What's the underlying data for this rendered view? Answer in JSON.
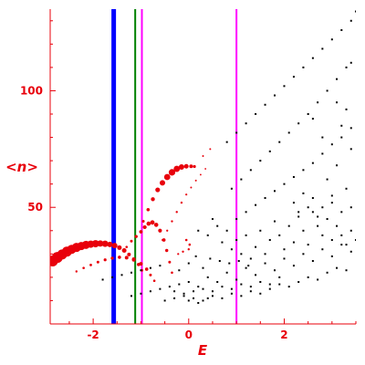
{
  "chart_data": {
    "type": "scatter",
    "title": "",
    "xlabel": "E",
    "ylabel": "<n>",
    "xlim": [
      -2.9,
      3.5
    ],
    "ylim": [
      0,
      135
    ],
    "xticks": [
      {
        "value": -2,
        "label": "-2"
      },
      {
        "value": 0,
        "label": "0"
      },
      {
        "value": 2,
        "label": "2"
      }
    ],
    "yticks": [
      {
        "value": 50,
        "label": "50"
      },
      {
        "value": 100,
        "label": "100"
      }
    ],
    "axis_color": "#e8000b",
    "grid": false,
    "series": [
      {
        "color": "#e8000b",
        "size_varies": true,
        "points": [
          {
            "x": -2.85,
            "y": 27,
            "s": 6
          },
          {
            "x": -2.75,
            "y": 28.5,
            "s": 6
          },
          {
            "x": -2.65,
            "y": 29.8,
            "s": 5.5
          },
          {
            "x": -2.55,
            "y": 31,
            "s": 5.5
          },
          {
            "x": -2.45,
            "y": 32,
            "s": 5
          },
          {
            "x": -2.35,
            "y": 32.8,
            "s": 5
          },
          {
            "x": -2.25,
            "y": 33.4,
            "s": 4.5
          },
          {
            "x": -2.15,
            "y": 33.9,
            "s": 4.5
          },
          {
            "x": -2.05,
            "y": 34.2,
            "s": 4
          },
          {
            "x": -1.95,
            "y": 34.4,
            "s": 4
          },
          {
            "x": -1.85,
            "y": 34.5,
            "s": 3.5
          },
          {
            "x": -1.75,
            "y": 34.4,
            "s": 3.5
          },
          {
            "x": -1.65,
            "y": 34.1,
            "s": 3
          },
          {
            "x": -1.55,
            "y": 33.6,
            "s": 3
          },
          {
            "x": -1.45,
            "y": 32.7,
            "s": 2.5
          },
          {
            "x": -1.35,
            "y": 31.5,
            "s": 2.5
          },
          {
            "x": -1.25,
            "y": 29.8,
            "s": 2
          },
          {
            "x": -1.15,
            "y": 27.8,
            "s": 2
          },
          {
            "x": -1.05,
            "y": 25.5,
            "s": 1.8
          },
          {
            "x": -0.98,
            "y": 23,
            "s": 1.5
          },
          {
            "x": -2.35,
            "y": 22.5,
            "s": 1.2
          },
          {
            "x": -2.2,
            "y": 24,
            "s": 1.3
          },
          {
            "x": -2.05,
            "y": 25.3,
            "s": 1.4
          },
          {
            "x": -1.9,
            "y": 26.5,
            "s": 1.5
          },
          {
            "x": -1.75,
            "y": 27.5,
            "s": 1.6
          },
          {
            "x": -1.6,
            "y": 28.2,
            "s": 1.7
          },
          {
            "x": -1.45,
            "y": 28.6,
            "s": 1.8
          },
          {
            "x": -1.3,
            "y": 28.4,
            "s": 2
          },
          {
            "x": -1.15,
            "y": 27.5,
            "s": 2
          },
          {
            "x": -1.0,
            "y": 25.8,
            "s": 2
          },
          {
            "x": -0.88,
            "y": 23.5,
            "s": 1.8
          },
          {
            "x": -0.8,
            "y": 21,
            "s": 1.5
          },
          {
            "x": -0.72,
            "y": 18.5,
            "s": 1.3
          },
          {
            "x": -1.3,
            "y": 33,
            "s": 1.3
          },
          {
            "x": -1.2,
            "y": 35.5,
            "s": 1.5
          },
          {
            "x": -1.1,
            "y": 37.5,
            "s": 1.7
          },
          {
            "x": -1.0,
            "y": 39.5,
            "s": 1.9
          },
          {
            "x": -0.92,
            "y": 41.5,
            "s": 2.1
          },
          {
            "x": -0.84,
            "y": 43,
            "s": 2.3
          },
          {
            "x": -0.76,
            "y": 43.5,
            "s": 2.4
          },
          {
            "x": -0.68,
            "y": 42.5,
            "s": 2.3
          },
          {
            "x": -0.6,
            "y": 40,
            "s": 2.1
          },
          {
            "x": -0.52,
            "y": 36,
            "s": 1.9
          },
          {
            "x": -0.46,
            "y": 31.5,
            "s": 1.7
          },
          {
            "x": -0.4,
            "y": 26.5,
            "s": 1.5
          },
          {
            "x": -0.35,
            "y": 22,
            "s": 1.3
          },
          {
            "x": -0.95,
            "y": 44,
            "s": 1.5
          },
          {
            "x": -0.85,
            "y": 49,
            "s": 1.8
          },
          {
            "x": -0.75,
            "y": 53.5,
            "s": 2.2
          },
          {
            "x": -0.65,
            "y": 57.5,
            "s": 2.6
          },
          {
            "x": -0.55,
            "y": 60.5,
            "s": 3
          },
          {
            "x": -0.45,
            "y": 63,
            "s": 3.4
          },
          {
            "x": -0.35,
            "y": 65,
            "s": 3.6
          },
          {
            "x": -0.25,
            "y": 66.5,
            "s": 3.4
          },
          {
            "x": -0.15,
            "y": 67.3,
            "s": 3
          },
          {
            "x": -0.05,
            "y": 67.6,
            "s": 2.5
          },
          {
            "x": 0.05,
            "y": 67.6,
            "s": 2
          },
          {
            "x": 0.12,
            "y": 67.5,
            "s": 1.6
          },
          {
            "x": -0.55,
            "y": 36,
            "s": 1
          },
          {
            "x": -0.45,
            "y": 40,
            "s": 1.1
          },
          {
            "x": -0.35,
            "y": 44,
            "s": 1.2
          },
          {
            "x": -0.25,
            "y": 48,
            "s": 1.2
          },
          {
            "x": -0.15,
            "y": 52,
            "s": 1.2
          },
          {
            "x": -0.05,
            "y": 55.5,
            "s": 1.1
          },
          {
            "x": 0.05,
            "y": 58.5,
            "s": 1
          },
          {
            "x": 0.15,
            "y": 61.5,
            "s": 1
          },
          {
            "x": 0.25,
            "y": 64,
            "s": 0.9
          },
          {
            "x": 0.35,
            "y": 66.5,
            "s": 0.9
          },
          {
            "x": -0.05,
            "y": 36,
            "s": 1.3
          },
          {
            "x": 0.02,
            "y": 34,
            "s": 1.3
          },
          {
            "x": 0.0,
            "y": 32,
            "s": 1.2
          },
          {
            "x": -0.12,
            "y": 31,
            "s": 1.2
          },
          {
            "x": -0.22,
            "y": 30,
            "s": 1.1
          },
          {
            "x": 0.3,
            "y": 72,
            "s": 1
          },
          {
            "x": 0.45,
            "y": 75,
            "s": 1
          }
        ]
      },
      {
        "color": "#000000",
        "size_varies": false,
        "points": [
          {
            "x": 0.8,
            "y": 78
          },
          {
            "x": 1.0,
            "y": 82
          },
          {
            "x": 1.2,
            "y": 86
          },
          {
            "x": 1.4,
            "y": 90
          },
          {
            "x": 1.6,
            "y": 94
          },
          {
            "x": 1.8,
            "y": 98
          },
          {
            "x": 2.0,
            "y": 102
          },
          {
            "x": 2.2,
            "y": 106
          },
          {
            "x": 2.4,
            "y": 110
          },
          {
            "x": 2.6,
            "y": 114
          },
          {
            "x": 2.8,
            "y": 118
          },
          {
            "x": 3.0,
            "y": 122
          },
          {
            "x": 3.2,
            "y": 126
          },
          {
            "x": 3.4,
            "y": 130
          },
          {
            "x": 3.5,
            "y": 134
          },
          {
            "x": 0.9,
            "y": 58
          },
          {
            "x": 1.1,
            "y": 62
          },
          {
            "x": 1.3,
            "y": 66
          },
          {
            "x": 1.5,
            "y": 70
          },
          {
            "x": 1.7,
            "y": 74
          },
          {
            "x": 1.9,
            "y": 78
          },
          {
            "x": 2.1,
            "y": 82
          },
          {
            "x": 2.3,
            "y": 86
          },
          {
            "x": 2.5,
            "y": 90
          },
          {
            "x": 2.7,
            "y": 95
          },
          {
            "x": 2.9,
            "y": 100
          },
          {
            "x": 3.1,
            "y": 105
          },
          {
            "x": 3.3,
            "y": 110
          },
          {
            "x": 3.4,
            "y": 112
          },
          {
            "x": 1.0,
            "y": 45
          },
          {
            "x": 1.2,
            "y": 48
          },
          {
            "x": 1.4,
            "y": 51
          },
          {
            "x": 1.6,
            "y": 54
          },
          {
            "x": 1.8,
            "y": 57
          },
          {
            "x": 2.0,
            "y": 60
          },
          {
            "x": 2.2,
            "y": 63
          },
          {
            "x": 2.4,
            "y": 66
          },
          {
            "x": 2.6,
            "y": 69
          },
          {
            "x": 2.8,
            "y": 73
          },
          {
            "x": 3.0,
            "y": 77
          },
          {
            "x": 3.2,
            "y": 80
          },
          {
            "x": 3.4,
            "y": 84
          },
          {
            "x": 2.6,
            "y": 88
          },
          {
            "x": 2.8,
            "y": 80
          },
          {
            "x": 3.1,
            "y": 95
          },
          {
            "x": 3.2,
            "y": 85
          },
          {
            "x": 3.3,
            "y": 92
          },
          {
            "x": 3.4,
            "y": 75
          },
          {
            "x": 2.9,
            "y": 62
          },
          {
            "x": 3.1,
            "y": 68
          },
          {
            "x": 3.3,
            "y": 58
          },
          {
            "x": 3.0,
            "y": 55
          },
          {
            "x": 0.2,
            "y": 40
          },
          {
            "x": 0.4,
            "y": 38
          },
          {
            "x": 0.5,
            "y": 45
          },
          {
            "x": 0.6,
            "y": 42
          },
          {
            "x": 0.7,
            "y": 35
          },
          {
            "x": 0.8,
            "y": 40
          },
          {
            "x": 0.9,
            "y": 32
          },
          {
            "x": 1.0,
            "y": 36
          },
          {
            "x": 1.1,
            "y": 30
          },
          {
            "x": 1.2,
            "y": 38
          },
          {
            "x": 1.3,
            "y": 28
          },
          {
            "x": 1.4,
            "y": 33
          },
          {
            "x": 1.5,
            "y": 40
          },
          {
            "x": 1.6,
            "y": 30
          },
          {
            "x": 1.7,
            "y": 36
          },
          {
            "x": 1.8,
            "y": 44
          },
          {
            "x": 1.9,
            "y": 38
          },
          {
            "x": 2.0,
            "y": 32
          },
          {
            "x": 2.1,
            "y": 42
          },
          {
            "x": 2.2,
            "y": 35
          },
          {
            "x": 2.3,
            "y": 46
          },
          {
            "x": 2.4,
            "y": 40
          },
          {
            "x": 2.5,
            "y": 34
          },
          {
            "x": 2.6,
            "y": 48
          },
          {
            "x": 2.7,
            "y": 42
          },
          {
            "x": 2.8,
            "y": 38
          },
          {
            "x": 2.9,
            "y": 45
          },
          {
            "x": 3.0,
            "y": 36
          },
          {
            "x": 3.1,
            "y": 42
          },
          {
            "x": 3.2,
            "y": 38
          },
          {
            "x": 3.3,
            "y": 34
          },
          {
            "x": 3.4,
            "y": 40
          },
          {
            "x": 3.5,
            "y": 36
          },
          {
            "x": 2.2,
            "y": 52
          },
          {
            "x": 2.4,
            "y": 56
          },
          {
            "x": 2.6,
            "y": 54
          },
          {
            "x": 2.8,
            "y": 50
          },
          {
            "x": 3.0,
            "y": 52
          },
          {
            "x": 3.2,
            "y": 48
          },
          {
            "x": 3.4,
            "y": 50
          },
          {
            "x": 2.3,
            "y": 48
          },
          {
            "x": 2.5,
            "y": 50
          },
          {
            "x": 2.7,
            "y": 46
          },
          {
            "x": -1.8,
            "y": 19
          },
          {
            "x": -1.6,
            "y": 20
          },
          {
            "x": -1.4,
            "y": 21
          },
          {
            "x": -1.2,
            "y": 22
          },
          {
            "x": -1.0,
            "y": 23
          },
          {
            "x": -0.8,
            "y": 24
          },
          {
            "x": -0.6,
            "y": 25
          },
          {
            "x": -1.2,
            "y": 12
          },
          {
            "x": -1.0,
            "y": 13
          },
          {
            "x": -0.8,
            "y": 14
          },
          {
            "x": -0.6,
            "y": 15
          },
          {
            "x": -0.4,
            "y": 16
          },
          {
            "x": -0.2,
            "y": 17
          },
          {
            "x": 0.0,
            "y": 18
          },
          {
            "x": -0.5,
            "y": 10
          },
          {
            "x": -0.3,
            "y": 11
          },
          {
            "x": -0.1,
            "y": 12
          },
          {
            "x": 0.1,
            "y": 11
          },
          {
            "x": 0.3,
            "y": 10
          },
          {
            "x": 0.5,
            "y": 12
          },
          {
            "x": 0.7,
            "y": 11
          },
          {
            "x": 0.9,
            "y": 13
          },
          {
            "x": 1.1,
            "y": 12
          },
          {
            "x": 1.3,
            "y": 14
          },
          {
            "x": 1.5,
            "y": 13
          },
          {
            "x": 1.7,
            "y": 15
          },
          {
            "x": 1.9,
            "y": 17
          },
          {
            "x": 2.1,
            "y": 16
          },
          {
            "x": 2.3,
            "y": 18
          },
          {
            "x": 2.5,
            "y": 20
          },
          {
            "x": 2.7,
            "y": 19
          },
          {
            "x": 2.9,
            "y": 22
          },
          {
            "x": 3.1,
            "y": 24
          },
          {
            "x": 3.3,
            "y": 23
          },
          {
            "x": 0.2,
            "y": 16
          },
          {
            "x": 0.4,
            "y": 20
          },
          {
            "x": 0.6,
            "y": 18
          },
          {
            "x": 0.8,
            "y": 22
          },
          {
            "x": 1.0,
            "y": 19
          },
          {
            "x": 1.2,
            "y": 24
          },
          {
            "x": 1.4,
            "y": 21
          },
          {
            "x": 1.6,
            "y": 26
          },
          {
            "x": 1.8,
            "y": 23
          },
          {
            "x": 2.0,
            "y": 28
          },
          {
            "x": 2.2,
            "y": 25
          },
          {
            "x": 2.4,
            "y": 30
          },
          {
            "x": 2.6,
            "y": 27
          },
          {
            "x": 2.8,
            "y": 32
          },
          {
            "x": 3.0,
            "y": 29
          },
          {
            "x": 3.2,
            "y": 34
          },
          {
            "x": 3.4,
            "y": 31
          },
          {
            "x": -0.2,
            "y": 23
          },
          {
            "x": 0.0,
            "y": 26
          },
          {
            "x": 0.15,
            "y": 29
          },
          {
            "x": 0.3,
            "y": 24
          },
          {
            "x": 0.45,
            "y": 28
          },
          {
            "x": 0.65,
            "y": 27
          },
          {
            "x": 0.85,
            "y": 26
          },
          {
            "x": 1.05,
            "y": 27
          },
          {
            "x": 1.25,
            "y": 25
          },
          {
            "x": 0.1,
            "y": 14
          },
          {
            "x": 0.3,
            "y": 15
          },
          {
            "x": 0.5,
            "y": 14
          },
          {
            "x": 0.7,
            "y": 16
          },
          {
            "x": 0.9,
            "y": 15
          },
          {
            "x": 1.1,
            "y": 17
          },
          {
            "x": 1.3,
            "y": 16
          },
          {
            "x": 1.5,
            "y": 18
          },
          {
            "x": 1.7,
            "y": 17
          },
          {
            "x": 1.9,
            "y": 20
          },
          {
            "x": -0.1,
            "y": 13
          },
          {
            "x": -0.3,
            "y": 14
          },
          {
            "x": 0.0,
            "y": 10
          },
          {
            "x": 0.2,
            "y": 9
          },
          {
            "x": 0.4,
            "y": 11
          }
        ]
      }
    ],
    "vertical_lines": [
      {
        "x": -1.57,
        "color": "#0000ff",
        "width": "thick"
      },
      {
        "x": -1.12,
        "color": "#008000",
        "width": "thin"
      },
      {
        "x": -0.98,
        "color": "#ff00ff",
        "width": "thin"
      },
      {
        "x": 1.0,
        "color": "#ff00ff",
        "width": "thin"
      }
    ]
  }
}
